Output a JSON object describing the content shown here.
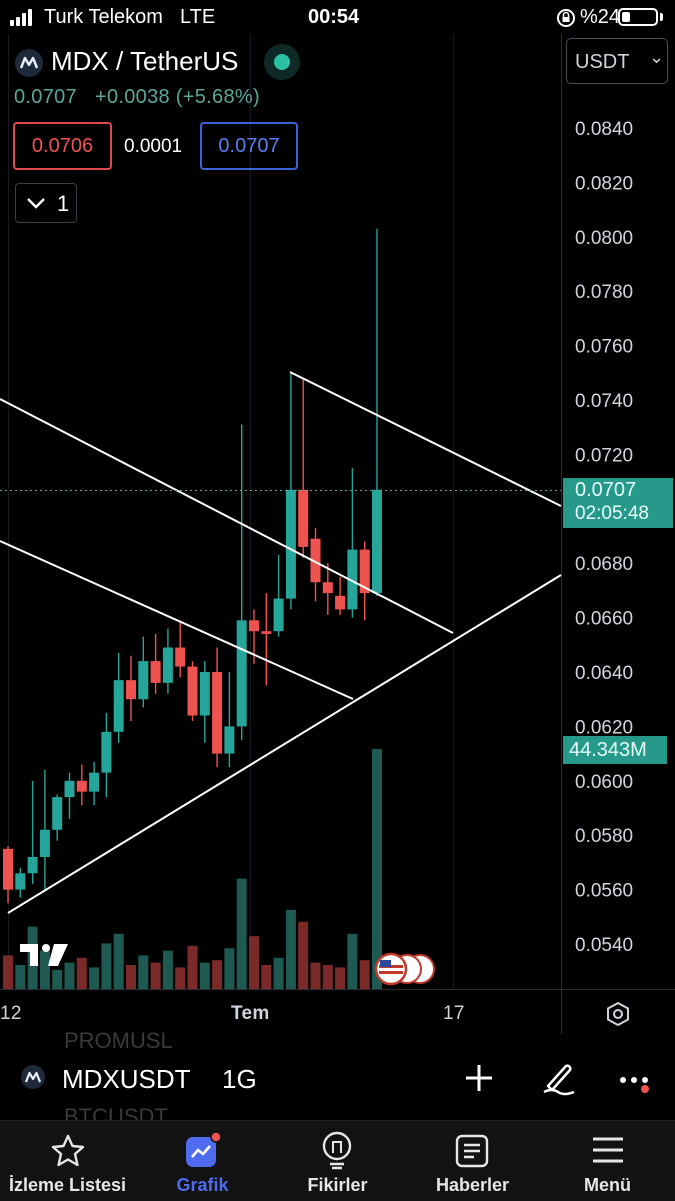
{
  "status_bar": {
    "carrier": "Turk Telekom",
    "network": "LTE",
    "time": "00:54",
    "battery": "%24"
  },
  "header": {
    "pair": "MDX / TetherUS",
    "last": "0.0707",
    "change": "+0.0038 (+5.68%)",
    "bid": "0.0706",
    "spread": "0.0001",
    "ask": "0.0707",
    "collapse_count": "1",
    "currency_select": "USDT",
    "currency_chevron": "⌄"
  },
  "price_axis": {
    "labels": [
      "0.0840",
      "0.0820",
      "0.0800",
      "0.0780",
      "0.0760",
      "0.0740",
      "0.0720",
      "0.0680",
      "0.0660",
      "0.0640",
      "0.0620",
      "0.0600",
      "0.0580",
      "0.0560",
      "0.0540"
    ],
    "current_price": "0.0707",
    "countdown": "02:05:48",
    "volume": "44.343M"
  },
  "time_axis": {
    "labels": [
      "12",
      "Tem",
      "17"
    ]
  },
  "bottom_toolbar": {
    "symbol": "MDXUSDT",
    "interval": "1G",
    "ghost_above": "PROMUSL",
    "ghost_below": "BTCUSDT"
  },
  "tabs": [
    {
      "label": "İzleme Listesi",
      "icon": "star-icon"
    },
    {
      "label": "Grafik",
      "icon": "chart-icon"
    },
    {
      "label": "Fikirler",
      "icon": "lightbulb-icon"
    },
    {
      "label": "Haberler",
      "icon": "news-icon"
    },
    {
      "label": "Menü",
      "icon": "menu-icon"
    }
  ],
  "colors": {
    "up": "#26a69a",
    "down": "#ef5350",
    "up_volume": "#1f5a52",
    "down_volume": "#7a2a29",
    "accent": "#4f6cf0"
  },
  "chart_data": {
    "type": "candlestick",
    "interval": "1G",
    "y_unit": "USDT",
    "ylim": [
      0.0528,
      0.0862
    ],
    "candles": [
      {
        "o": 0.0575,
        "h": 0.0576,
        "l": 0.0555,
        "c": 0.056,
        "v": 14
      },
      {
        "o": 0.056,
        "h": 0.0568,
        "l": 0.0557,
        "c": 0.0566,
        "v": 10
      },
      {
        "o": 0.0566,
        "h": 0.06,
        "l": 0.0562,
        "c": 0.0572,
        "v": 26
      },
      {
        "o": 0.0572,
        "h": 0.0604,
        "l": 0.056,
        "c": 0.0582,
        "v": 16
      },
      {
        "o": 0.0582,
        "h": 0.0595,
        "l": 0.0578,
        "c": 0.0594,
        "v": 8
      },
      {
        "o": 0.0594,
        "h": 0.0603,
        "l": 0.0586,
        "c": 0.06,
        "v": 11
      },
      {
        "o": 0.06,
        "h": 0.0606,
        "l": 0.0591,
        "c": 0.0596,
        "v": 13
      },
      {
        "o": 0.0596,
        "h": 0.0607,
        "l": 0.0591,
        "c": 0.0603,
        "v": 9
      },
      {
        "o": 0.0603,
        "h": 0.0625,
        "l": 0.0594,
        "c": 0.0618,
        "v": 19
      },
      {
        "o": 0.0618,
        "h": 0.0647,
        "l": 0.0614,
        "c": 0.0637,
        "v": 23
      },
      {
        "o": 0.0637,
        "h": 0.0646,
        "l": 0.0622,
        "c": 0.063,
        "v": 10
      },
      {
        "o": 0.063,
        "h": 0.0653,
        "l": 0.0627,
        "c": 0.0644,
        "v": 14
      },
      {
        "o": 0.0644,
        "h": 0.0654,
        "l": 0.0632,
        "c": 0.0636,
        "v": 11
      },
      {
        "o": 0.0636,
        "h": 0.0656,
        "l": 0.0632,
        "c": 0.0649,
        "v": 16
      },
      {
        "o": 0.0649,
        "h": 0.0659,
        "l": 0.0638,
        "c": 0.0642,
        "v": 9
      },
      {
        "o": 0.0642,
        "h": 0.0644,
        "l": 0.0622,
        "c": 0.0624,
        "v": 18
      },
      {
        "o": 0.0624,
        "h": 0.0644,
        "l": 0.0614,
        "c": 0.064,
        "v": 11
      },
      {
        "o": 0.064,
        "h": 0.0649,
        "l": 0.0605,
        "c": 0.061,
        "v": 12
      },
      {
        "o": 0.061,
        "h": 0.064,
        "l": 0.0605,
        "c": 0.062,
        "v": 17
      },
      {
        "o": 0.062,
        "h": 0.0731,
        "l": 0.0615,
        "c": 0.0659,
        "v": 46
      },
      {
        "o": 0.0659,
        "h": 0.0663,
        "l": 0.0643,
        "c": 0.0655,
        "v": 22
      },
      {
        "o": 0.0655,
        "h": 0.0669,
        "l": 0.0635,
        "c": 0.0654,
        "v": 10
      },
      {
        "o": 0.0655,
        "h": 0.0683,
        "l": 0.0653,
        "c": 0.0667,
        "v": 13
      },
      {
        "o": 0.0667,
        "h": 0.075,
        "l": 0.0663,
        "c": 0.0707,
        "v": 33
      },
      {
        "o": 0.0707,
        "h": 0.0748,
        "l": 0.0682,
        "c": 0.0686,
        "v": 28
      },
      {
        "o": 0.0689,
        "h": 0.0693,
        "l": 0.0666,
        "c": 0.0673,
        "v": 11
      },
      {
        "o": 0.0673,
        "h": 0.068,
        "l": 0.0661,
        "c": 0.0669,
        "v": 10
      },
      {
        "o": 0.0668,
        "h": 0.0675,
        "l": 0.0661,
        "c": 0.0663,
        "v": 9
      },
      {
        "o": 0.0663,
        "h": 0.0715,
        "l": 0.066,
        "c": 0.0685,
        "v": 23
      },
      {
        "o": 0.0685,
        "h": 0.0688,
        "l": 0.0659,
        "c": 0.0669,
        "v": 12
      },
      {
        "o": 0.0669,
        "h": 0.0803,
        "l": 0.0668,
        "c": 0.0707,
        "v": 100
      }
    ]
  }
}
